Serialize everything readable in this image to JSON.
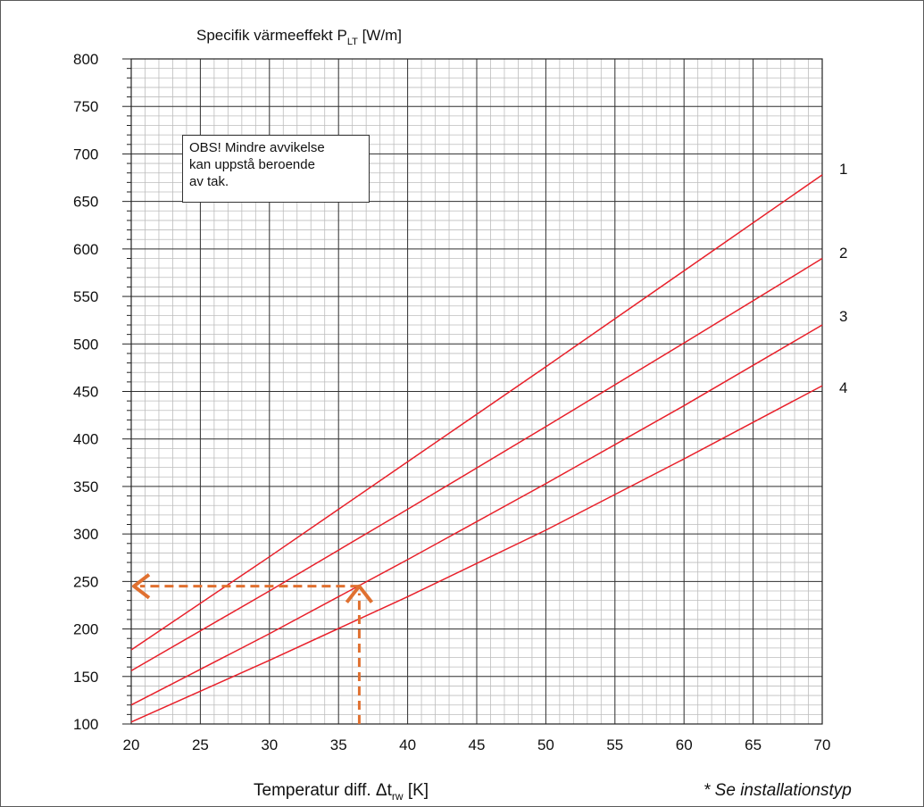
{
  "chart_data": {
    "type": "line",
    "title": "Specifik värmeeffekt P",
    "title_sub": "LT",
    "title_unit": " [W/m]",
    "xlabel": "Temperatur diff. Δt",
    "xlabel_sub": "rw",
    "xlabel_unit": " [K]",
    "xlim": [
      20,
      70
    ],
    "ylim": [
      100,
      800
    ],
    "x_ticks": [
      20,
      25,
      30,
      35,
      40,
      45,
      50,
      55,
      60,
      65,
      70
    ],
    "y_ticks": [
      100,
      150,
      200,
      250,
      300,
      350,
      400,
      450,
      500,
      550,
      600,
      650,
      700,
      750,
      800
    ],
    "grid": true,
    "legend": "none",
    "series": [
      {
        "name": "1",
        "x": [
          20,
          30,
          40,
          50,
          60,
          70
        ],
        "y": [
          178,
          276,
          376,
          476,
          577,
          678
        ]
      },
      {
        "name": "2",
        "x": [
          20,
          30,
          40,
          50,
          60,
          70
        ],
        "y": [
          156,
          240,
          326,
          413,
          501,
          590
        ]
      },
      {
        "name": "3",
        "x": [
          20,
          30,
          40,
          50,
          60,
          70
        ],
        "y": [
          120,
          195,
          273,
          353,
          435,
          520
        ]
      },
      {
        "name": "4",
        "x": [
          20,
          30,
          40,
          50,
          60,
          70
        ],
        "y": [
          102,
          167,
          234,
          304,
          379,
          456
        ]
      }
    ],
    "annotations": {
      "note_lines": [
        "OBS! Mindre avvikelse",
        "kan uppstå beroende",
        "av tak."
      ],
      "footnote": "* Se installationstyp",
      "example_reading": {
        "x": 36.5,
        "y": 245
      }
    },
    "colors": {
      "series": "#e8202a",
      "arrow": "#e07030",
      "grid_major": "#333333",
      "grid_minor": "#bdbdbd"
    }
  }
}
